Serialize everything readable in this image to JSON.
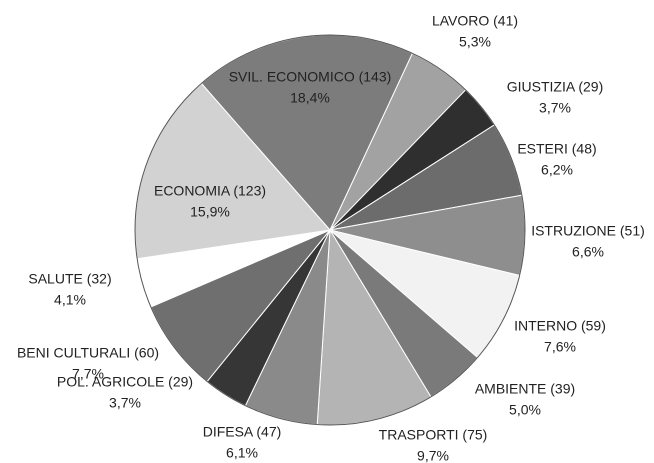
{
  "chart_data": {
    "type": "pie",
    "categories": [
      "LAVORO (41)",
      "GIUSTIZIA (29)",
      "ESTERI (48)",
      "ISTRUZIONE (51)",
      "INTERNO (59)",
      "AMBIENTE (39)",
      "TRASPORTI (75)",
      "DIFESA (47)",
      "POL. AGRICOLE (29)",
      "BENI CULTURALI (60)",
      "SALUTE (32)",
      "ECONOMIA (123)",
      "SVIL. ECONOMICO (143)"
    ],
    "values": [
      5.3,
      3.7,
      6.2,
      6.6,
      7.6,
      5.0,
      9.7,
      6.1,
      3.7,
      7.7,
      4.1,
      15.9,
      18.4
    ],
    "value_labels": [
      "5,3%",
      "3,7%",
      "6,2%",
      "6,6%",
      "7,6%",
      "5,0%",
      "9,7%",
      "6,1%",
      "3,7%",
      "7,7%",
      "4,1%",
      "15,9%",
      "18,4%"
    ],
    "colors": [
      "#a2a2a2",
      "#2f2f2f",
      "#6c6c6c",
      "#8e8e8e",
      "#f2f2f2",
      "#7a7a7a",
      "#b4b4b4",
      "#8a8a8a",
      "#363636",
      "#6f6f6f",
      "#ffffff",
      "#d2d2d2",
      "#7c7c7c"
    ]
  }
}
